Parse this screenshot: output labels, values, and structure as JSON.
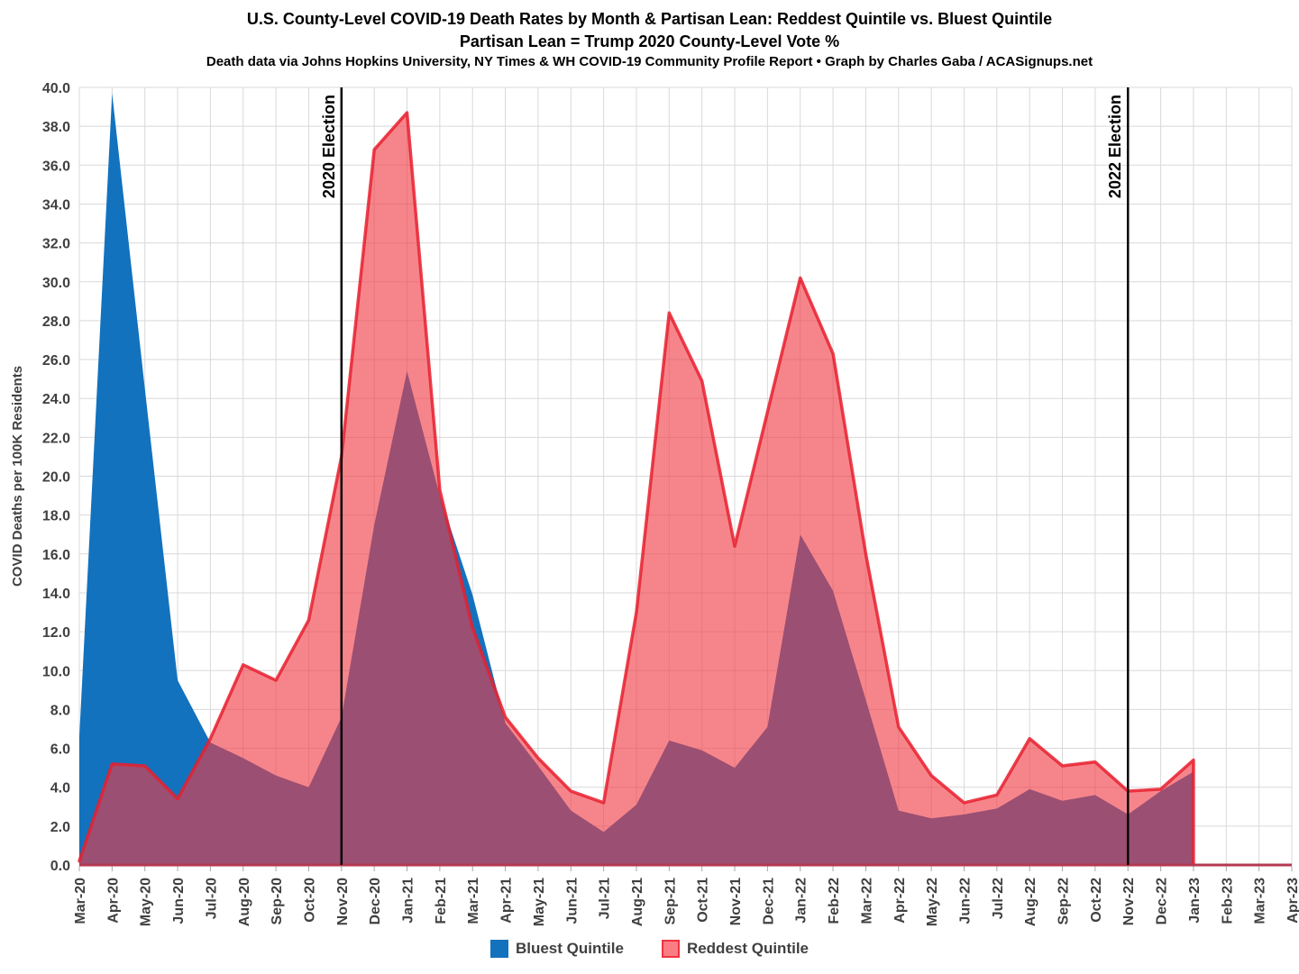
{
  "header": {
    "title": "U.S. County-Level COVID-19 Death Rates by Month & Partisan Lean: Reddest Quintile vs. Bluest Quintile",
    "subtitle": "Partisan Lean = Trump 2020 County-Level Vote %",
    "source_line": "Death data via Johns Hopkins University, NY Times & WH COVID-19 Community Profile Report • Graph by Charles Gaba / ACASignups.net"
  },
  "chart_data": {
    "type": "area",
    "title": "U.S. County-Level COVID-19 Death Rates by Month & Partisan Lean: Reddest Quintile vs. Bluest Quintile",
    "subtitle": "Partisan Lean = Trump 2020 County-Level Vote %",
    "source": "Death data via Johns Hopkins University, NY Times & WH COVID-19 Community Profile Report • Graph by Charles Gaba / ACASignups.net",
    "xlabel": "",
    "ylabel": "COVID Deaths per 100K Residents",
    "ylim": [
      0,
      40
    ],
    "y_tick_step": 2,
    "y_tick_decimals": 1,
    "grid": true,
    "legend_position": "bottom",
    "categories": [
      "Mar-20",
      "Apr-20",
      "May-20",
      "Jun-20",
      "Jul-20",
      "Aug-20",
      "Sep-20",
      "Oct-20",
      "Nov-20",
      "Dec-20",
      "Jan-21",
      "Feb-21",
      "Mar-21",
      "Apr-21",
      "May-21",
      "Jun-21",
      "Jul-21",
      "Aug-21",
      "Sep-21",
      "Oct-21",
      "Nov-21",
      "Dec-21",
      "Jan-22",
      "Feb-22",
      "Mar-22",
      "Apr-22",
      "May-22",
      "Jun-22",
      "Jul-22",
      "Aug-22",
      "Sep-22",
      "Oct-22",
      "Nov-22",
      "Dec-22",
      "Jan-23",
      "Feb-23",
      "Mar-23",
      "Apr-23"
    ],
    "data_plotted_through": "Jan-23",
    "series": [
      {
        "name": "Bluest Quintile",
        "color": "#1272BE",
        "values": [
          6.6,
          39.7,
          24.5,
          9.5,
          6.3,
          5.5,
          4.6,
          4.0,
          7.6,
          17.5,
          25.4,
          19.0,
          13.9,
          7.3,
          5.1,
          2.8,
          1.7,
          3.1,
          6.4,
          5.9,
          5.0,
          7.1,
          17.0,
          14.1,
          8.5,
          2.8,
          2.4,
          2.6,
          2.9,
          3.9,
          3.3,
          3.6,
          2.6,
          3.8,
          4.8
        ]
      },
      {
        "name": "Reddest Quintile",
        "color": "#F4434C",
        "values": [
          0.2,
          5.2,
          5.1,
          3.4,
          6.5,
          10.3,
          9.5,
          12.6,
          21.0,
          36.8,
          38.7,
          19.3,
          12.2,
          7.6,
          5.5,
          3.8,
          3.2,
          13.0,
          28.4,
          24.9,
          16.4,
          23.3,
          30.2,
          26.3,
          16.0,
          7.1,
          4.6,
          3.2,
          3.6,
          6.5,
          5.1,
          5.3,
          3.8,
          3.9,
          5.4
        ]
      }
    ],
    "annotations": [
      {
        "label": "2020 Election",
        "category_index": 8
      },
      {
        "label": "2022 Election",
        "category_index": 32
      }
    ]
  },
  "legend": {
    "items": [
      {
        "label": "Bluest Quintile",
        "fill": "#1272BE",
        "border": "#1272BE"
      },
      {
        "label": "Reddest Quintile",
        "fill": "#FA7D85",
        "border": "#EF3340"
      }
    ]
  },
  "style": {
    "gridline_color": "#D9D9D9",
    "axis_text_color": "#404040",
    "axis_baseline_color": "#B43A50",
    "annotation_line_color": "#000000",
    "blue_fill": "#1272BE",
    "red_fill_rgba": "rgba(240,58,68,0.62)",
    "red_stroke_rgba": "rgba(232,30,46,0.85)"
  }
}
